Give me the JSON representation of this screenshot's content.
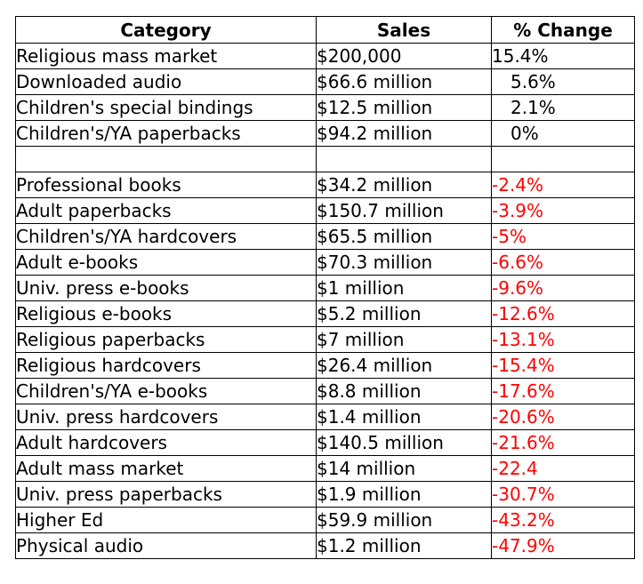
{
  "chart_data": {
    "type": "table",
    "columns": [
      "Category",
      "Sales",
      "% Change"
    ],
    "colors": {
      "text": "#000000",
      "negative": "#ff0000",
      "border": "#000000"
    },
    "rows": [
      {
        "category": "Religious mass market",
        "sales": "$200,000",
        "change": "15.4%",
        "change_value": 15.4
      },
      {
        "category": "Downloaded audio",
        "sales": "$66.6 million",
        "change": "5.6%",
        "change_value": 5.6
      },
      {
        "category": "Children's special bindings",
        "sales": "$12.5 million",
        "change": "2.1%",
        "change_value": 2.1
      },
      {
        "category": "Children's/YA paperbacks",
        "sales": "$94.2 million",
        "change": "0%",
        "change_value": 0
      },
      {
        "category": "",
        "sales": "",
        "change": "",
        "change_value": null
      },
      {
        "category": "Professional books",
        "sales": "$34.2 million",
        "change": "-2.4%",
        "change_value": -2.4
      },
      {
        "category": "Adult paperbacks",
        "sales": "$150.7 million",
        "change": "-3.9%",
        "change_value": -3.9
      },
      {
        "category": "Children's/YA hardcovers",
        "sales": "$65.5 million",
        "change": "-5%",
        "change_value": -5
      },
      {
        "category": "Adult e-books",
        "sales": "$70.3 million",
        "change": "-6.6%",
        "change_value": -6.6
      },
      {
        "category": "Univ. press e-books",
        "sales": "$1 million",
        "change": "-9.6%",
        "change_value": -9.6
      },
      {
        "category": "Religious e-books",
        "sales": "$5.2 million",
        "change": "-12.6%",
        "change_value": -12.6
      },
      {
        "category": "Religious paperbacks",
        "sales": "$7 million",
        "change": "-13.1%",
        "change_value": -13.1
      },
      {
        "category": "Religious hardcovers",
        "sales": "$26.4 million",
        "change": "-15.4%",
        "change_value": -15.4
      },
      {
        "category": "Children's/YA e-books",
        "sales": "$8.8 million",
        "change": "-17.6%",
        "change_value": -17.6
      },
      {
        "category": "Univ. press hardcovers",
        "sales": "$1.4 million",
        "change": "-20.6%",
        "change_value": -20.6
      },
      {
        "category": "Adult hardcovers",
        "sales": "$140.5 million",
        "change": "-21.6%",
        "change_value": -21.6
      },
      {
        "category": "Adult mass market",
        "sales": "$14 million",
        "change": "-22.4",
        "change_value": -22.4
      },
      {
        "category": "Univ. press paperbacks",
        "sales": "$1.9 million",
        "change": "-30.7%",
        "change_value": -30.7
      },
      {
        "category": "Higher Ed",
        "sales": "$59.9 million",
        "change": "-43.2%",
        "change_value": -43.2
      },
      {
        "category": "Physical audio",
        "sales": "$1.2 million",
        "change": "-47.9%",
        "change_value": -47.9
      }
    ]
  }
}
